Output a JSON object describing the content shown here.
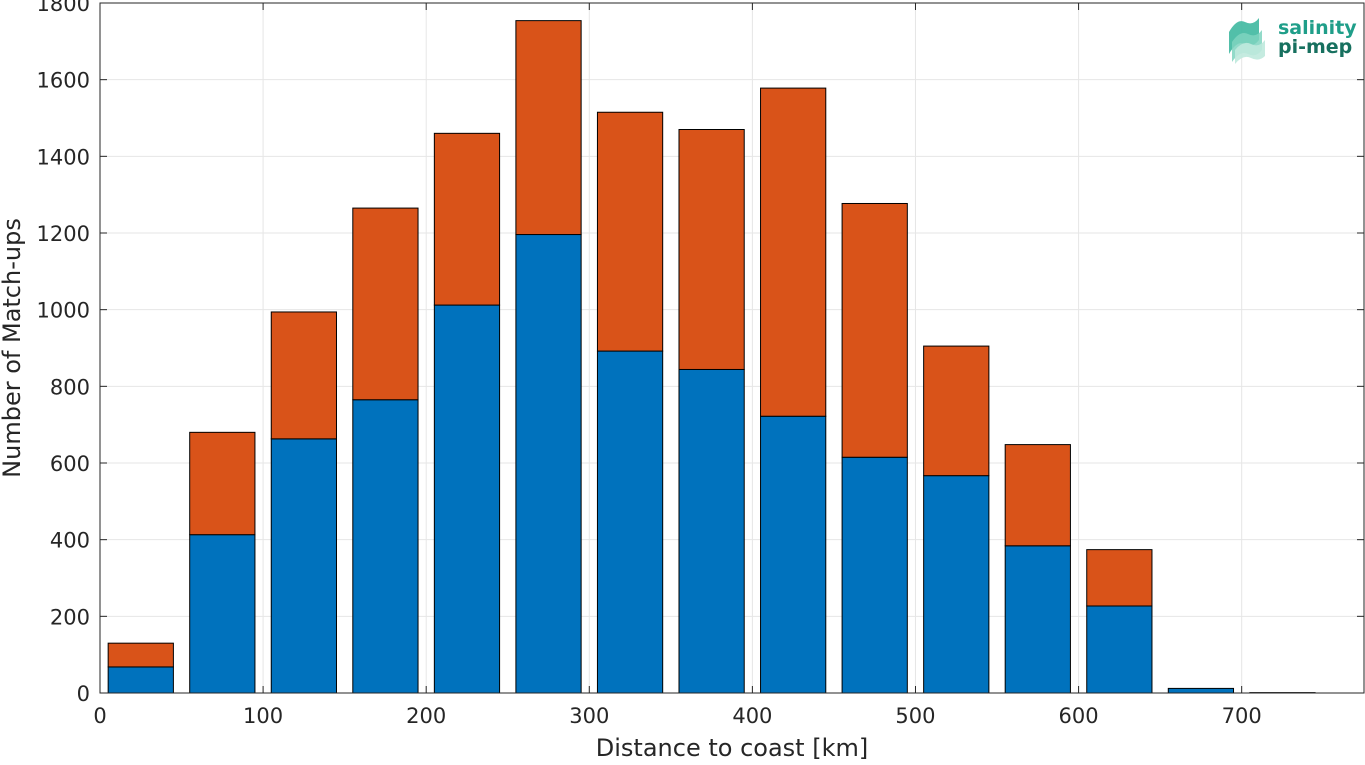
{
  "chart_data": {
    "type": "bar",
    "stacked": true,
    "title": "",
    "xlabel": "Distance to coast [km]",
    "ylabel": "Number of Match-ups",
    "xlim": [
      0,
      775
    ],
    "ylim": [
      0,
      1800
    ],
    "xticks": [
      0,
      100,
      200,
      300,
      400,
      500,
      600,
      700
    ],
    "yticks": [
      0,
      200,
      400,
      600,
      800,
      1000,
      1200,
      1400,
      1600,
      1800
    ],
    "grid": true,
    "bin_centers": [
      25,
      75,
      125,
      175,
      225,
      275,
      325,
      375,
      425,
      475,
      525,
      575,
      625,
      675,
      725
    ],
    "bar_width_km": 40,
    "series": [
      {
        "color": "#0072BD",
        "values": [
          68,
          413,
          663,
          765,
          1012,
          1196,
          892,
          844,
          722,
          615,
          567,
          384,
          227,
          12,
          1
        ]
      },
      {
        "color": "#D95319",
        "values": [
          62,
          267,
          331,
          500,
          448,
          558,
          623,
          626,
          856,
          662,
          338,
          264,
          147,
          0,
          0
        ]
      }
    ]
  },
  "logo": {
    "line1": "salinity",
    "line2": "pi-mep",
    "color": "#1f9e89"
  }
}
